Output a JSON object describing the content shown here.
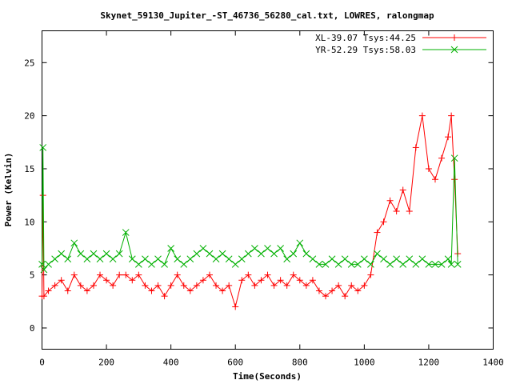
{
  "chart_data": {
    "type": "scatter",
    "title": "Skynet_59130_Jupiter_-ST_46736_56280_cal.txt, LOWRES, ralongmap",
    "xlabel": "Time(Seconds)",
    "ylabel": "Power (Kelvin)",
    "xlim": [
      0,
      1400
    ],
    "ylim": [
      -2,
      28
    ],
    "xticks": [
      0,
      200,
      400,
      600,
      800,
      1000,
      1200,
      1400
    ],
    "yticks": [
      0,
      5,
      10,
      15,
      20,
      25
    ],
    "grid": false,
    "legend_position": "top-right",
    "series": [
      {
        "name": "XL-39.07 Tsys:44.25",
        "color": "#ff0000",
        "marker": "plus",
        "x": [
          0,
          3,
          6,
          20,
          40,
          60,
          80,
          100,
          120,
          140,
          160,
          180,
          200,
          220,
          240,
          260,
          280,
          300,
          320,
          340,
          360,
          380,
          400,
          420,
          440,
          460,
          480,
          500,
          520,
          540,
          560,
          580,
          600,
          620,
          640,
          660,
          680,
          700,
          720,
          740,
          760,
          780,
          800,
          820,
          840,
          860,
          880,
          900,
          920,
          940,
          960,
          980,
          1000,
          1020,
          1040,
          1060,
          1080,
          1100,
          1120,
          1140,
          1160,
          1180,
          1200,
          1220,
          1240,
          1260,
          1270,
          1280,
          1290
        ],
        "y": [
          3,
          12.5,
          3,
          3.5,
          4,
          4.5,
          3.5,
          5,
          4,
          3.5,
          4,
          5,
          4.5,
          4,
          5,
          5,
          4.5,
          5,
          4,
          3.5,
          4,
          3,
          4,
          5,
          4,
          3.5,
          4,
          4.5,
          5,
          4,
          3.5,
          4,
          2,
          4.5,
          5,
          4,
          4.5,
          5,
          4,
          4.5,
          4,
          5,
          4.5,
          4,
          4.5,
          3.5,
          3,
          3.5,
          4,
          3,
          4,
          3.5,
          4,
          5,
          9,
          10,
          12,
          11,
          13,
          11,
          17,
          20,
          15,
          14,
          16,
          18,
          20,
          14,
          7
        ]
      },
      {
        "name": "YR-52.29 Tsys:58.03",
        "color": "#00b000",
        "marker": "cross",
        "x": [
          0,
          3,
          6,
          20,
          40,
          60,
          80,
          100,
          120,
          140,
          160,
          180,
          200,
          220,
          240,
          260,
          280,
          300,
          320,
          340,
          360,
          380,
          400,
          420,
          440,
          460,
          480,
          500,
          520,
          540,
          560,
          580,
          600,
          620,
          640,
          660,
          680,
          700,
          720,
          740,
          760,
          780,
          800,
          820,
          840,
          860,
          880,
          900,
          920,
          940,
          960,
          980,
          1000,
          1020,
          1040,
          1060,
          1080,
          1100,
          1120,
          1140,
          1160,
          1180,
          1200,
          1220,
          1240,
          1260,
          1270,
          1280,
          1290
        ],
        "y": [
          6,
          17,
          5.5,
          6,
          6.5,
          7,
          6.5,
          8,
          7,
          6.5,
          7,
          6.5,
          7,
          6.5,
          7,
          9,
          6.5,
          6,
          6.5,
          6,
          6.5,
          6,
          7.5,
          6.5,
          6,
          6.5,
          7,
          7.5,
          7,
          6.5,
          7,
          6.5,
          6,
          6.5,
          7,
          7.5,
          7,
          7.5,
          7,
          7.5,
          6.5,
          7,
          8,
          7,
          6.5,
          6,
          6,
          6.5,
          6,
          6.5,
          6,
          6,
          6.5,
          6,
          7,
          6.5,
          6,
          6.5,
          6,
          6.5,
          6,
          6.5,
          6,
          6,
          6,
          6.5,
          6,
          16,
          6
        ]
      }
    ]
  }
}
